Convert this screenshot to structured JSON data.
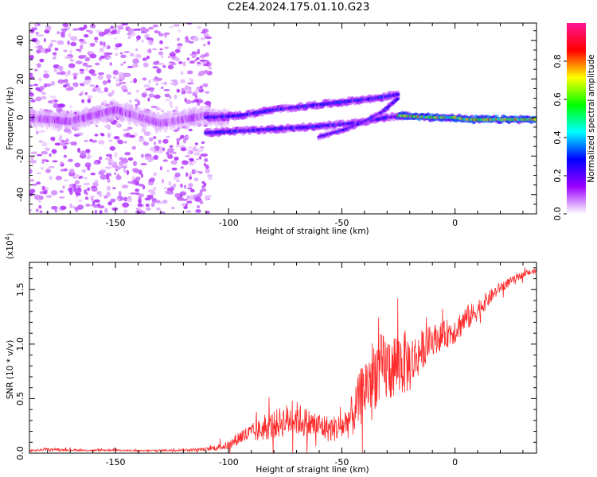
{
  "title": "C2E4.2024.175.01.10.G23",
  "chart_data": [
    {
      "type": "heatmap",
      "xlabel": "Height of straight line (km)",
      "ylabel": "Frequency (Hz)",
      "xlim": [
        -188,
        36
      ],
      "ylim": [
        -50,
        49
      ],
      "x_ticks": [
        -150,
        -100,
        -50,
        0
      ],
      "x_tick_labels": [
        "-150",
        "-100",
        "-50",
        "0"
      ],
      "y_ticks": [
        -40,
        -20,
        0,
        20,
        40
      ],
      "y_tick_labels": [
        "-40",
        "-20",
        "0",
        "20",
        "40"
      ],
      "colorbar": {
        "label": "Normalized spectral amplitude",
        "range": [
          0,
          1
        ],
        "ticks": [
          0.0,
          0.2,
          0.4,
          0.6,
          0.8
        ],
        "tick_labels": [
          "0.0",
          "0.2",
          "0.4",
          "0.6",
          "0.8"
        ],
        "colors": [
          "#ffffff",
          "#9d00ff",
          "#0000ff",
          "#00ffff",
          "#00ff00",
          "#ffff00",
          "#ff0000",
          "#ff1493"
        ]
      },
      "scatter_region": {
        "x": [
          -188,
          -108
        ],
        "y": [
          -50,
          49
        ],
        "amplitude": 0.1
      },
      "tracks": [
        {
          "x": [
            -190,
            -170,
            -150,
            -130,
            -110,
            -100
          ],
          "y": [
            0,
            -2,
            4,
            -3,
            1,
            0
          ],
          "width_hz": 9,
          "amplitude": 0.12
        },
        {
          "x": [
            -110,
            -95,
            -80,
            -65,
            -45,
            -30,
            -20
          ],
          "y": [
            -8,
            -7,
            -6,
            -5,
            -3,
            0,
            1
          ],
          "width_hz": 4,
          "amplitude": 0.3
        },
        {
          "x": [
            -110,
            -95,
            -80,
            -65,
            -50,
            -35,
            -25
          ],
          "y": [
            0,
            1,
            4,
            6,
            8,
            10,
            12
          ],
          "width_hz": 4,
          "amplitude": 0.3
        },
        {
          "x": [
            -60,
            -48,
            -40,
            -32,
            -25
          ],
          "y": [
            -10,
            -6,
            -2,
            3,
            10
          ],
          "width_hz": 3,
          "amplitude": 0.3
        },
        {
          "x": [
            -25,
            -10,
            0,
            5,
            20,
            36
          ],
          "y": [
            1,
            0,
            0,
            -1,
            -1,
            -1
          ],
          "width_hz": 4,
          "amplitude": 0.72
        }
      ]
    },
    {
      "type": "line",
      "xlabel": "Height of straight line (km)",
      "ylabel": "SNR (10 * v/v)",
      "y_multiplier": "(x10",
      "y_multiplier_exp": "4",
      "y_multiplier_close": ")",
      "xlim": [
        -188,
        36
      ],
      "ylim": [
        0,
        17500
      ],
      "x_ticks": [
        -150,
        -100,
        -50,
        0
      ],
      "x_tick_labels": [
        "-150",
        "-100",
        "-50",
        "0"
      ],
      "y_ticks": [
        0,
        5000,
        10000,
        15000
      ],
      "y_tick_labels": [
        "0.0",
        "0.5",
        "1.0",
        "1.5"
      ],
      "series": [
        {
          "color": "#ff2a2a",
          "x": [
            -188,
            -180,
            -170,
            -160,
            -150,
            -140,
            -130,
            -120,
            -110,
            -100,
            -95,
            -90,
            -85,
            -80,
            -75,
            -70,
            -65,
            -60,
            -55,
            -50,
            -45,
            -42,
            -40,
            -37,
            -35,
            -30,
            -25,
            -22,
            -20,
            -17,
            -15,
            -10,
            -5,
            0,
            5,
            8,
            10,
            15,
            20,
            25,
            30,
            36
          ],
          "y": [
            200,
            350,
            300,
            250,
            300,
            200,
            250,
            300,
            350,
            700,
            1500,
            1800,
            2200,
            2600,
            3000,
            3200,
            2700,
            2500,
            2200,
            2400,
            3500,
            5000,
            6000,
            7000,
            7500,
            7800,
            8200,
            8300,
            8200,
            8800,
            9400,
            10400,
            10800,
            11300,
            12400,
            12700,
            13200,
            14200,
            15200,
            15800,
            16400,
            16700
          ],
          "noise": [
            80,
            100,
            90,
            80,
            90,
            80,
            90,
            100,
            150,
            400,
            700,
            900,
            1100,
            1300,
            1500,
            1600,
            1400,
            1300,
            1200,
            1300,
            2000,
            2600,
            3000,
            3300,
            3400,
            3300,
            3200,
            3000,
            2700,
            2200,
            1900,
            1400,
            1300,
            1300,
            1200,
            1100,
            1000,
            700,
            500,
            400,
            300,
            200
          ]
        }
      ]
    }
  ]
}
